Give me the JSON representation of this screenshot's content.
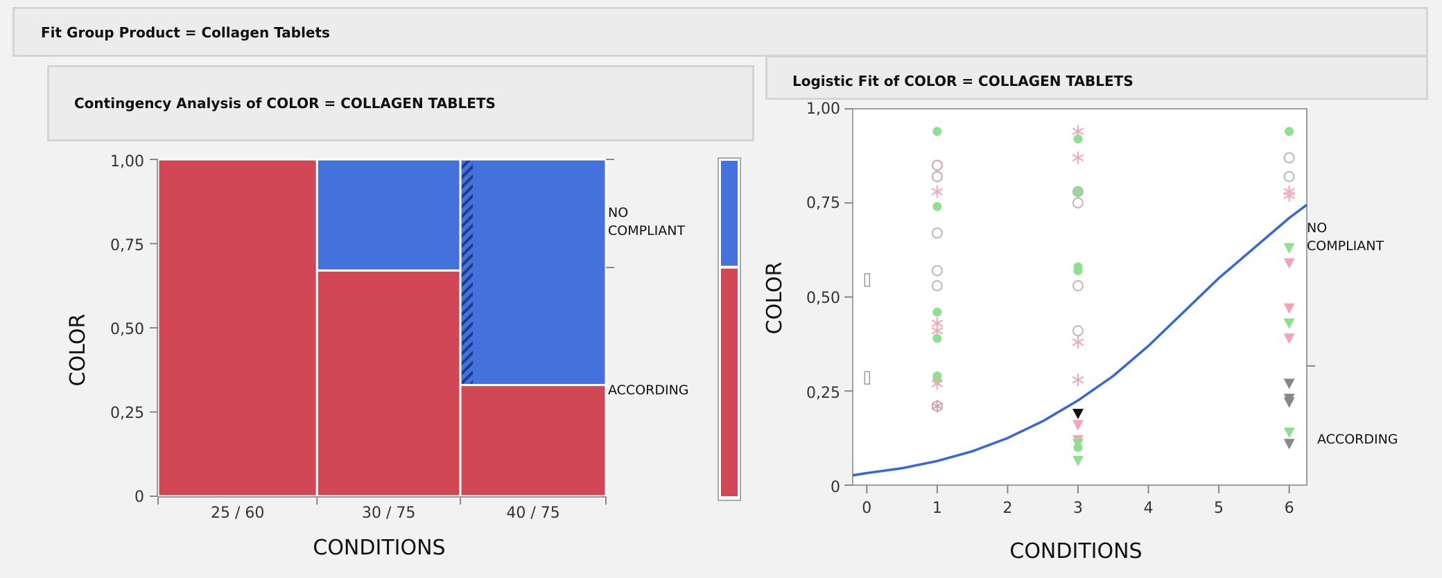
{
  "outer_title": "Fit Group Product = Collagen Tablets",
  "contingency": {
    "title": "Contingency Analysis of COLOR = COLLAGEN TABLETS",
    "ylabel": "COLOR",
    "xlabel": "CONDITIONS",
    "yticks": [
      "0",
      "0,25",
      "0,50",
      "0,75",
      "1,00"
    ],
    "level_top": [
      "NO",
      "COMPLIANT"
    ],
    "level_bottom": "ACCORDING"
  },
  "logistic": {
    "title": "Logistic Fit of COLOR = COLLAGEN TABLETS",
    "ylabel": "COLOR",
    "xlabel": "CONDITIONS",
    "yticks": [
      "0",
      "0,25",
      "0,50",
      "0,75",
      "1,00"
    ],
    "xticks": [
      "0",
      "1",
      "2",
      "3",
      "4",
      "5",
      "6"
    ],
    "level_top": [
      "NO",
      "COMPLIANT"
    ],
    "level_bottom": "ACCORDING"
  },
  "colors": {
    "according": "#d14755",
    "no_compliant": "#4472dd",
    "curve": "#3366e0",
    "frame": "#c8c8c8"
  },
  "chart_data": [
    {
      "type": "bar",
      "subtype": "mosaic",
      "title": "Contingency Analysis of COLOR = COLLAGEN TABLETS",
      "xlabel": "CONDITIONS",
      "ylabel": "COLOR",
      "ylim": [
        0,
        1
      ],
      "categories": [
        "25 / 60",
        "30 / 75",
        "40 / 75"
      ],
      "category_widths": [
        0.355,
        0.32,
        0.325
      ],
      "series": [
        {
          "name": "ACCORDING",
          "values": [
            1.0,
            0.67,
            0.33
          ]
        },
        {
          "name": "NO COMPLIANT",
          "values": [
            0.0,
            0.33,
            0.67
          ]
        }
      ],
      "marginal": {
        "ACCORDING": 0.68,
        "NO COMPLIANT": 0.32
      },
      "legend": "right"
    },
    {
      "type": "scatter",
      "title": "Logistic Fit of COLOR = COLLAGEN TABLETS",
      "xlabel": "CONDITIONS",
      "ylabel": "COLOR",
      "xlim": [
        -0.2,
        6.25
      ],
      "ylim": [
        0,
        1
      ],
      "curve": {
        "x": [
          -0.2,
          0,
          0.5,
          1,
          1.5,
          2,
          2.5,
          3,
          3.5,
          4,
          4.5,
          5,
          5.5,
          6,
          6.25
        ],
        "y": [
          0.026,
          0.032,
          0.045,
          0.064,
          0.09,
          0.125,
          0.17,
          0.225,
          0.29,
          0.37,
          0.46,
          0.55,
          0.63,
          0.71,
          0.745
        ]
      },
      "points": [
        {
          "x": 1,
          "y": 0.94,
          "m": "dot",
          "c": "#8ee08e"
        },
        {
          "x": 1,
          "y": 0.85,
          "m": "ring",
          "c": "#c9a6ad"
        },
        {
          "x": 1,
          "y": 0.82,
          "m": "ring",
          "c": "#c9a6ad"
        },
        {
          "x": 1,
          "y": 0.78,
          "m": "star",
          "c": "#f2a6b4"
        },
        {
          "x": 1,
          "y": 0.74,
          "m": "dot",
          "c": "#8ee08e"
        },
        {
          "x": 1,
          "y": 0.67,
          "m": "ring",
          "c": "#b8b8b8"
        },
        {
          "x": 1,
          "y": 0.57,
          "m": "ring",
          "c": "#b8b8b8"
        },
        {
          "x": 1,
          "y": 0.53,
          "m": "ring",
          "c": "#b8b8b8"
        },
        {
          "x": 1,
          "y": 0.46,
          "m": "dot",
          "c": "#8ee08e"
        },
        {
          "x": 1,
          "y": 0.43,
          "m": "star",
          "c": "#f2a6b4"
        },
        {
          "x": 1,
          "y": 0.41,
          "m": "star",
          "c": "#f2a6b4"
        },
        {
          "x": 1,
          "y": 0.39,
          "m": "dot",
          "c": "#8ee08e"
        },
        {
          "x": 1,
          "y": 0.29,
          "m": "dot",
          "c": "#8ee08e"
        },
        {
          "x": 1,
          "y": 0.28,
          "m": "dot",
          "c": "#8ee08e"
        },
        {
          "x": 1,
          "y": 0.27,
          "m": "star",
          "c": "#f2a6b4"
        },
        {
          "x": 1,
          "y": 0.21,
          "m": "ring",
          "c": "#c9a6ad"
        },
        {
          "x": 1,
          "y": 0.21,
          "m": "star",
          "c": "#c9a6ad"
        },
        {
          "x": 3,
          "y": 0.94,
          "m": "star",
          "c": "#f2a6b4"
        },
        {
          "x": 3,
          "y": 0.92,
          "m": "dot",
          "c": "#8ee08e"
        },
        {
          "x": 3,
          "y": 0.87,
          "m": "star",
          "c": "#f2a6b4"
        },
        {
          "x": 3,
          "y": 0.78,
          "m": "dot",
          "c": "#8ee08e"
        },
        {
          "x": 3,
          "y": 0.78,
          "m": "ring",
          "c": "#b8b8b8"
        },
        {
          "x": 3,
          "y": 0.75,
          "m": "ring",
          "c": "#b8b8b8"
        },
        {
          "x": 3,
          "y": 0.58,
          "m": "dot",
          "c": "#8ee08e"
        },
        {
          "x": 3,
          "y": 0.57,
          "m": "dot",
          "c": "#8ee08e"
        },
        {
          "x": 3,
          "y": 0.53,
          "m": "ring",
          "c": "#b8b8b8"
        },
        {
          "x": 3,
          "y": 0.41,
          "m": "ring",
          "c": "#b8b8b8"
        },
        {
          "x": 3,
          "y": 0.38,
          "m": "star",
          "c": "#f2a6b4"
        },
        {
          "x": 3,
          "y": 0.28,
          "m": "star",
          "c": "#f2a6b4"
        },
        {
          "x": 3,
          "y": 0.19,
          "m": "tri",
          "c": "#111111"
        },
        {
          "x": 3,
          "y": 0.16,
          "m": "tri",
          "c": "#f2a6b4"
        },
        {
          "x": 3,
          "y": 0.12,
          "m": "tri",
          "c": "#f2a6b4"
        },
        {
          "x": 3,
          "y": 0.11,
          "m": "tri",
          "c": "#8ee08e"
        },
        {
          "x": 3,
          "y": 0.1,
          "m": "dot",
          "c": "#8ee08e"
        },
        {
          "x": 3,
          "y": 0.065,
          "m": "tri",
          "c": "#8ee08e"
        },
        {
          "x": 6,
          "y": 0.94,
          "m": "dot",
          "c": "#8ee08e"
        },
        {
          "x": 6,
          "y": 0.87,
          "m": "ring",
          "c": "#b8b8b8"
        },
        {
          "x": 6,
          "y": 0.82,
          "m": "ring",
          "c": "#b8b8b8"
        },
        {
          "x": 6,
          "y": 0.78,
          "m": "star",
          "c": "#f2a6b4"
        },
        {
          "x": 6,
          "y": 0.77,
          "m": "star",
          "c": "#f2a6b4"
        },
        {
          "x": 6,
          "y": 0.63,
          "m": "tri",
          "c": "#8ee08e"
        },
        {
          "x": 6,
          "y": 0.59,
          "m": "tri",
          "c": "#f2a6b4"
        },
        {
          "x": 6,
          "y": 0.47,
          "m": "tri",
          "c": "#f2a6b4"
        },
        {
          "x": 6,
          "y": 0.43,
          "m": "tri",
          "c": "#8ee08e"
        },
        {
          "x": 6,
          "y": 0.39,
          "m": "tri",
          "c": "#f2a6b4"
        },
        {
          "x": 6,
          "y": 0.27,
          "m": "tri",
          "c": "#888888"
        },
        {
          "x": 6,
          "y": 0.23,
          "m": "tri",
          "c": "#888888"
        },
        {
          "x": 6,
          "y": 0.22,
          "m": "tri",
          "c": "#888888"
        },
        {
          "x": 6,
          "y": 0.14,
          "m": "tri",
          "c": "#8ee08e"
        },
        {
          "x": 6,
          "y": 0.11,
          "m": "tri",
          "c": "#888888"
        }
      ],
      "legend": "right"
    }
  ]
}
